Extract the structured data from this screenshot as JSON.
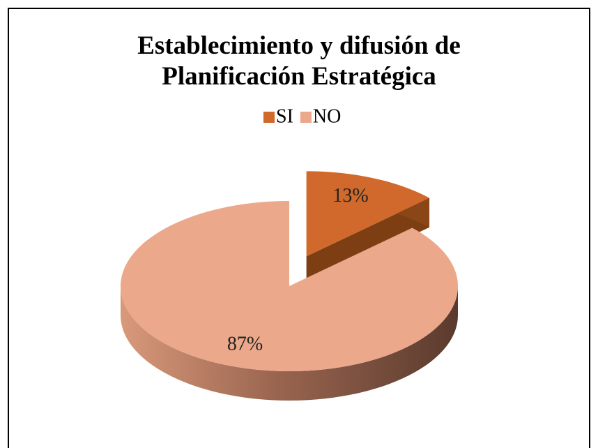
{
  "chart_data": {
    "type": "pie3d",
    "title": "Establecimiento y difusión de Planificación Estratégica",
    "categories": [
      "SI",
      "NO"
    ],
    "values": [
      13,
      87
    ],
    "value_labels": [
      "13%",
      "87%"
    ],
    "colors": [
      "#d0692b",
      "#eba88a"
    ],
    "legend": "top",
    "exploded": [
      true,
      false
    ]
  }
}
